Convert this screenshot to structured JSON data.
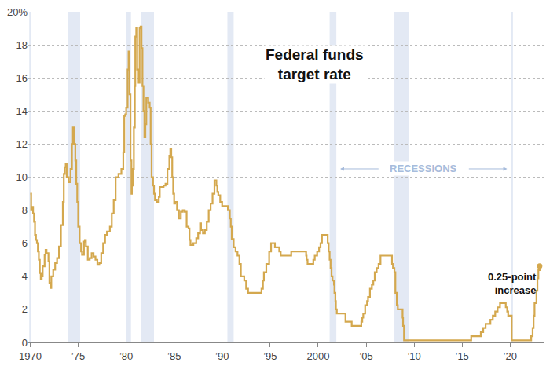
{
  "chart_data": {
    "type": "line",
    "title": "Federal funds target rate",
    "recessions_label": "RECESSIONS",
    "annotation": "0.25-point increase",
    "color": "#d4a84e",
    "line_style": "step",
    "grid": true,
    "xlim": [
      1969.8,
      2023.5
    ],
    "xticks": [
      {
        "value": 1970,
        "label": "1970"
      },
      {
        "value": 1975,
        "label": "’75"
      },
      {
        "value": 1980,
        "label": "’80"
      },
      {
        "value": 1985,
        "label": "’85"
      },
      {
        "value": 1990,
        "label": "’90"
      },
      {
        "value": 1995,
        "label": "’95"
      },
      {
        "value": 2000,
        "label": "2000"
      },
      {
        "value": 2005,
        "label": "’05"
      },
      {
        "value": 2010,
        "label": "’10"
      },
      {
        "value": 2015,
        "label": "’15"
      },
      {
        "value": 2020,
        "label": "’20"
      }
    ],
    "ylim": [
      0,
      20
    ],
    "yticks": [
      0,
      2,
      4,
      6,
      8,
      10,
      12,
      14,
      16,
      18,
      {
        "value": 20,
        "label": "20%"
      }
    ],
    "recessions": [
      [
        1969.9,
        1970.1
      ],
      [
        1973.9,
        1975.2
      ],
      [
        1980.0,
        1980.5
      ],
      [
        1981.55,
        1982.9
      ],
      [
        1990.55,
        1991.2
      ],
      [
        2001.2,
        2001.9
      ],
      [
        2007.95,
        2009.5
      ],
      [
        2020.1,
        2020.3
      ]
    ],
    "x": [
      1970.0,
      1970.1,
      1970.2,
      1970.3,
      1970.4,
      1970.5,
      1970.6,
      1970.7,
      1970.8,
      1970.9,
      1971.0,
      1971.1,
      1971.2,
      1971.3,
      1971.5,
      1971.6,
      1971.7,
      1971.9,
      1972.0,
      1972.1,
      1972.2,
      1972.4,
      1972.6,
      1972.8,
      1973.0,
      1973.2,
      1973.4,
      1973.5,
      1973.6,
      1973.7,
      1973.8,
      1974.0,
      1974.2,
      1974.35,
      1974.45,
      1974.55,
      1974.7,
      1974.8,
      1974.9,
      1975.0,
      1975.15,
      1975.3,
      1975.4,
      1975.6,
      1975.7,
      1975.8,
      1976.0,
      1976.2,
      1976.4,
      1976.6,
      1976.8,
      1977.0,
      1977.2,
      1977.4,
      1977.6,
      1977.8,
      1978.0,
      1978.3,
      1978.5,
      1978.7,
      1978.9,
      1979.2,
      1979.5,
      1979.7,
      1979.8,
      1979.9,
      1980.0,
      1980.15,
      1980.25,
      1980.35,
      1980.45,
      1980.55,
      1980.6,
      1980.7,
      1980.8,
      1980.9,
      1980.95,
      1981.05,
      1981.15,
      1981.3,
      1981.4,
      1981.5,
      1981.6,
      1981.7,
      1981.8,
      1981.9,
      1982.0,
      1982.1,
      1982.3,
      1982.45,
      1982.55,
      1982.65,
      1982.8,
      1982.9,
      1983.0,
      1983.2,
      1983.4,
      1983.5,
      1983.7,
      1983.9,
      1984.1,
      1984.3,
      1984.5,
      1984.6,
      1984.7,
      1984.8,
      1984.9,
      1985.0,
      1985.1,
      1985.3,
      1985.5,
      1985.7,
      1985.9,
      1986.1,
      1986.3,
      1986.5,
      1986.6,
      1986.7,
      1987.0,
      1987.3,
      1987.5,
      1987.7,
      1987.8,
      1988.0,
      1988.2,
      1988.4,
      1988.6,
      1988.8,
      1989.0,
      1989.2,
      1989.4,
      1989.5,
      1989.6,
      1989.8,
      1990.0,
      1990.6,
      1990.8,
      1990.9,
      1991.0,
      1991.2,
      1991.4,
      1991.6,
      1991.8,
      1991.95,
      1992.3,
      1992.5,
      1992.7,
      1994.1,
      1994.25,
      1994.35,
      1994.6,
      1994.9,
      1995.1,
      1995.5,
      1995.95,
      1996.1,
      1997.2,
      1998.75,
      1998.8,
      1998.9,
      1999.5,
      1999.65,
      1999.9,
      2000.1,
      2000.25,
      2000.4,
      2001.0,
      2001.1,
      2001.2,
      2001.3,
      2001.4,
      2001.5,
      2001.65,
      2001.7,
      2001.8,
      2001.85,
      2001.95,
      2002.85,
      2003.5,
      2004.5,
      2004.6,
      2004.7,
      2004.9,
      2005.1,
      2005.2,
      2005.4,
      2005.6,
      2005.75,
      2005.9,
      2006.1,
      2006.3,
      2006.5,
      2007.7,
      2007.8,
      2007.95,
      2008.05,
      2008.2,
      2008.3,
      2008.8,
      2008.85,
      2008.95,
      2015.95,
      2016.95,
      2017.2,
      2017.45,
      2017.95,
      2018.2,
      2018.45,
      2018.7,
      2018.95,
      2019.55,
      2019.7,
      2019.8,
      2020.17,
      2022.2,
      2022.35,
      2022.45,
      2022.55,
      2022.75,
      2022.85,
      2022.95,
      2023.08
    ],
    "values": [
      9.0,
      8.0,
      8.2,
      7.8,
      7.3,
      6.5,
      6.2,
      6.0,
      5.5,
      5.0,
      4.2,
      3.8,
      4.0,
      4.6,
      5.3,
      5.6,
      5.4,
      4.9,
      3.6,
      3.3,
      4.0,
      4.4,
      4.8,
      5.1,
      5.8,
      7.1,
      8.5,
      10.2,
      10.6,
      10.8,
      10.0,
      9.7,
      10.5,
      12.0,
      13.0,
      12.0,
      11.0,
      9.6,
      8.5,
      7.0,
      6.0,
      5.5,
      5.3,
      6.1,
      6.2,
      5.8,
      5.0,
      5.1,
      5.4,
      5.2,
      5.0,
      4.7,
      4.8,
      5.4,
      6.0,
      6.5,
      6.7,
      7.0,
      7.8,
      8.6,
      10.0,
      10.2,
      10.5,
      11.5,
      13.7,
      13.8,
      14.2,
      16.5,
      17.6,
      15.0,
      11.0,
      9.0,
      9.5,
      10.5,
      13.0,
      15.5,
      18.5,
      19.0,
      16.5,
      15.7,
      19.0,
      19.1,
      17.8,
      15.5,
      14.0,
      12.4,
      13.2,
      14.8,
      14.5,
      14.2,
      12.0,
      10.0,
      9.5,
      9.0,
      8.6,
      8.5,
      8.8,
      9.4,
      9.4,
      9.5,
      9.6,
      10.5,
      11.3,
      11.7,
      11.2,
      10.0,
      9.0,
      8.4,
      8.5,
      8.0,
      7.5,
      7.9,
      8.0,
      7.9,
      7.0,
      6.9,
      6.2,
      5.9,
      6.0,
      6.3,
      6.6,
      7.2,
      6.8,
      6.6,
      6.8,
      7.3,
      8.0,
      8.4,
      9.0,
      9.8,
      9.5,
      9.1,
      8.9,
      8.5,
      8.25,
      8.0,
      7.5,
      7.0,
      6.25,
      5.75,
      5.5,
      5.25,
      4.75,
      4.0,
      3.75,
      3.25,
      3.0,
      3.25,
      3.75,
      4.25,
      4.75,
      5.5,
      6.0,
      5.75,
      5.5,
      5.25,
      5.5,
      5.25,
      5.0,
      4.75,
      5.0,
      5.25,
      5.5,
      5.75,
      6.0,
      6.5,
      6.0,
      5.5,
      5.0,
      4.5,
      4.0,
      3.75,
      3.5,
      3.0,
      2.5,
      2.0,
      1.75,
      1.25,
      1.0,
      1.25,
      1.5,
      1.75,
      2.25,
      2.5,
      2.75,
      3.25,
      3.5,
      3.75,
      4.25,
      4.5,
      4.75,
      5.25,
      4.75,
      4.5,
      4.25,
      3.0,
      2.25,
      2.0,
      1.5,
      1.0,
      0.125,
      0.375,
      0.625,
      0.875,
      1.125,
      1.375,
      1.625,
      1.875,
      2.125,
      2.375,
      2.125,
      1.875,
      1.625,
      0.125,
      0.375,
      0.875,
      1.625,
      2.375,
      3.125,
      3.875,
      4.375,
      4.625
    ]
  }
}
